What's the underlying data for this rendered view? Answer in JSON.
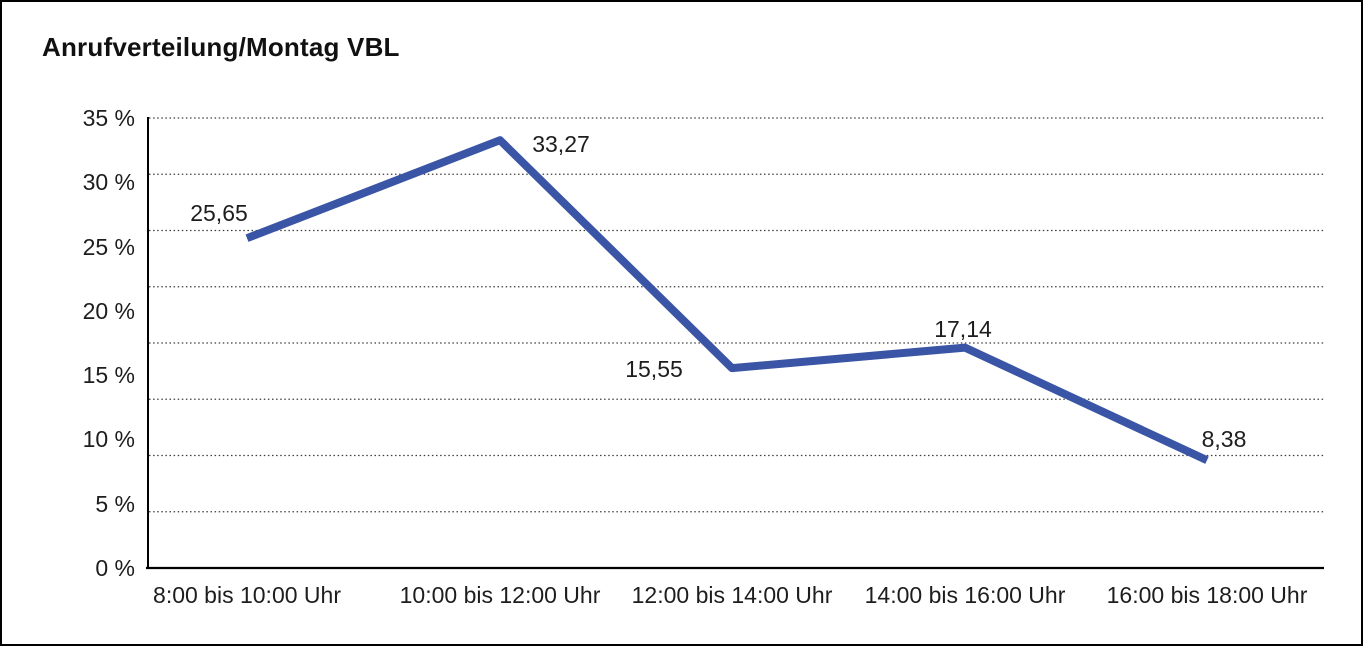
{
  "header": {
    "title": "Anrufverteilung/Montag VBL"
  },
  "chart_data": {
    "type": "line",
    "title": "Anrufverteilung/Montag VBL",
    "categories": [
      "8:00 bis 10:00 Uhr",
      "10:00 bis 12:00 Uhr",
      "12:00 bis 14:00 Uhr",
      "14:00 bis 16:00 Uhr",
      "16:00 bis 18:00 Uhr"
    ],
    "values": [
      25.65,
      33.27,
      15.55,
      17.14,
      8.38
    ],
    "value_labels": [
      "25,65",
      "33,27",
      "15,55",
      "17,14",
      "8,38"
    ],
    "y_tick_labels": [
      "35 %",
      "30 %",
      "25 %",
      "20 %",
      "15 %",
      "10 %",
      "5 %",
      "0 %"
    ],
    "y_tick_values": [
      35,
      30,
      25,
      20,
      15,
      10,
      5,
      0
    ],
    "ylim": [
      0,
      35
    ],
    "y_tick_step": 5,
    "gridline_divisions": 8,
    "grid_style": "dotted-horizontal",
    "legend": "none",
    "colors": {
      "line": "#3A55A5",
      "axis": "#000000",
      "gridline": "#3c3c3c",
      "text": "#1d1d1d",
      "background": "#ffffff"
    }
  }
}
